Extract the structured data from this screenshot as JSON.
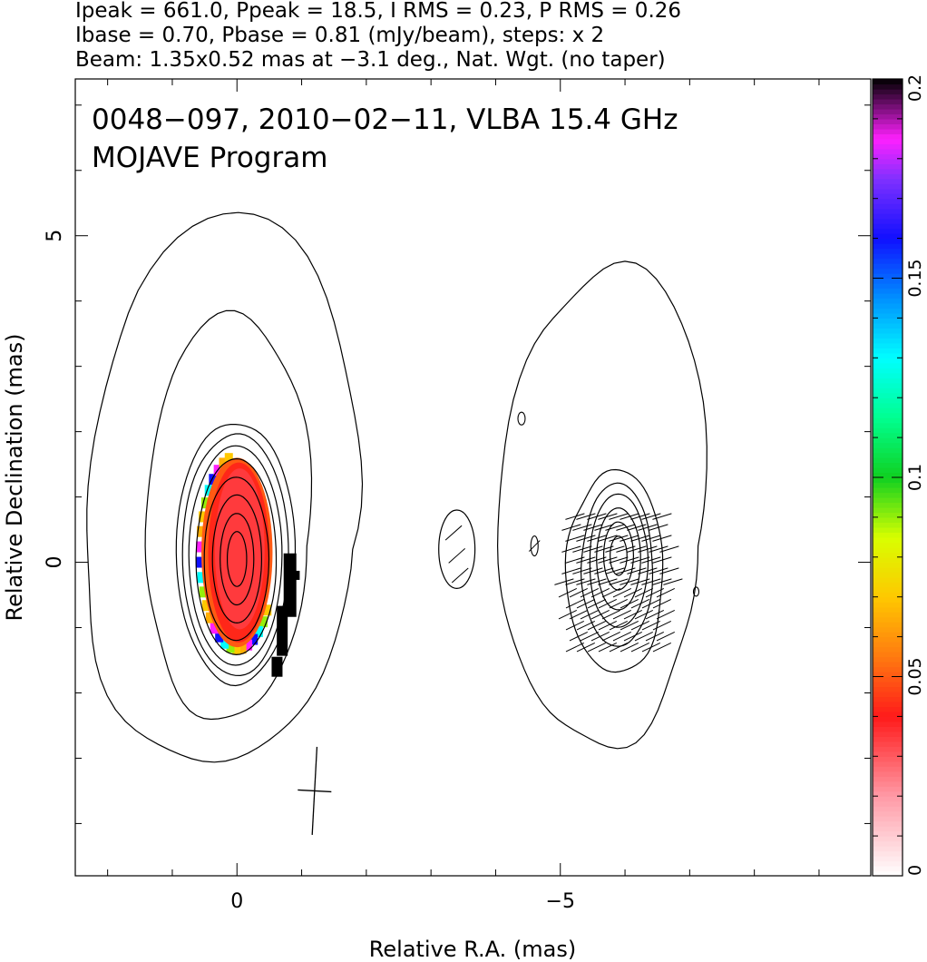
{
  "header": {
    "line1": "Ipeak = 661.0, Ppeak = 18.5, I RMS = 0.23, P RMS = 0.26",
    "line2": "Ibase = 0.70, Pbase = 0.81 (mJy/beam), steps: x 2",
    "line3": "Beam: 1.35x0.52 mas at −3.1 deg., Nat. Wgt. (no taper)"
  },
  "annotations": {
    "title": "0048−097, 2010−02−11, VLBA 15.4 GHz",
    "program": "MOJAVE Program"
  },
  "chart_data": {
    "type": "heatmap",
    "description_kind": "VLBA radio image: total intensity contours, fractional polarization color map, EVPA ticks",
    "xlabel": "Relative R.A. (mas)",
    "ylabel": "Relative Declination (mas)",
    "xlim": [
      2.5,
      -9.8
    ],
    "ylim": [
      -4.8,
      7.4
    ],
    "x_ticks": [
      {
        "value": 0,
        "label": "0"
      },
      {
        "value": -5,
        "label": "−5"
      }
    ],
    "y_ticks": [
      {
        "value": 5,
        "label": "5"
      },
      {
        "value": 0,
        "label": "0"
      }
    ],
    "colorbar": {
      "range": [
        0,
        0.2
      ],
      "ticks": [
        {
          "value": 0,
          "label": "0"
        },
        {
          "value": 0.05,
          "label": "0.05"
        },
        {
          "value": 0.1,
          "label": "0.1"
        },
        {
          "value": 0.15,
          "label": "0.15"
        },
        {
          "value": 0.2,
          "label": "0.2"
        }
      ],
      "palette_stops": [
        {
          "v": 0.0,
          "color": "#ffffff"
        },
        {
          "v": 0.02,
          "color": "#ff9aa6"
        },
        {
          "v": 0.04,
          "color": "#ff1a1a"
        },
        {
          "v": 0.055,
          "color": "#ff7a10"
        },
        {
          "v": 0.07,
          "color": "#ffc800"
        },
        {
          "v": 0.085,
          "color": "#d8ff00"
        },
        {
          "v": 0.1,
          "color": "#10d020"
        },
        {
          "v": 0.115,
          "color": "#00ff90"
        },
        {
          "v": 0.13,
          "color": "#00ffff"
        },
        {
          "v": 0.145,
          "color": "#0090ff"
        },
        {
          "v": 0.16,
          "color": "#1010ff"
        },
        {
          "v": 0.175,
          "color": "#8030ff"
        },
        {
          "v": 0.185,
          "color": "#ff20ff"
        },
        {
          "v": 0.2,
          "color": "#000000"
        }
      ]
    },
    "image_params": {
      "ipeak_mjy": 661.0,
      "ppeak_mjy": 18.5,
      "i_rms": 0.23,
      "p_rms": 0.26,
      "ibase": 0.7,
      "pbase": 0.81,
      "contour_step_factor": 2,
      "beam_major_mas": 1.35,
      "beam_minor_mas": 0.52,
      "beam_pa_deg": -3.1
    },
    "core": {
      "x": 0,
      "y": 0,
      "contour_levels": 10
    },
    "jet_feature": {
      "x": -5.9,
      "y": 0.1,
      "contour_levels": 7
    },
    "small_blob": {
      "x": -3.4,
      "y": 0.2
    },
    "polarization_core": {
      "x": 0,
      "y": 0.15,
      "frac_pol": 0.035
    },
    "evpa_region": {
      "x": -5.9,
      "y": -0.3
    },
    "beam_marker": {
      "x": -1.2,
      "y": -3.5
    }
  }
}
